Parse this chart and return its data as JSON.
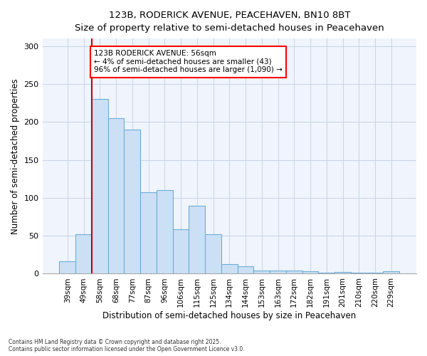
{
  "title_line1": "123B, RODERICK AVENUE, PEACEHAVEN, BN10 8BT",
  "title_line2": "Size of property relative to semi-detached houses in Peacehaven",
  "xlabel": "Distribution of semi-detached houses by size in Peacehaven",
  "ylabel": "Number of semi-detached properties",
  "categories": [
    "39sqm",
    "49sqm",
    "58sqm",
    "68sqm",
    "77sqm",
    "87sqm",
    "96sqm",
    "106sqm",
    "115sqm",
    "125sqm",
    "134sqm",
    "144sqm",
    "153sqm",
    "163sqm",
    "172sqm",
    "182sqm",
    "191sqm",
    "201sqm",
    "210sqm",
    "220sqm",
    "229sqm"
  ],
  "values": [
    16,
    52,
    230,
    205,
    190,
    107,
    110,
    59,
    90,
    52,
    13,
    10,
    4,
    4,
    4,
    3,
    1,
    2,
    1,
    1,
    3
  ],
  "bar_color": "#cce0f5",
  "bar_edge_color": "#6baed6",
  "background_color": "#ffffff",
  "plot_bg_color": "#f0f4fc",
  "grid_color": "#c8d4e8",
  "marker_label": "123B RODERICK AVENUE: 56sqm",
  "marker_smaller": "← 4% of semi-detached houses are smaller (43)",
  "marker_larger": "96% of semi-detached houses are larger (1,090) →",
  "vline_color": "#cc0000",
  "vline_x": 1.5,
  "footer_line1": "Contains HM Land Registry data © Crown copyright and database right 2025.",
  "footer_line2": "Contains public sector information licensed under the Open Government Licence v3.0.",
  "ylim": [
    0,
    310
  ],
  "yticks": [
    0,
    50,
    100,
    150,
    200,
    250,
    300
  ]
}
